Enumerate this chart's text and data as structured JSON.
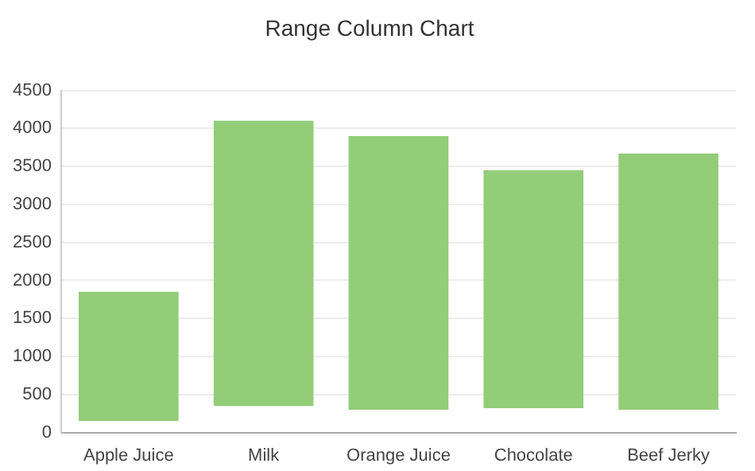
{
  "chart_data": {
    "type": "bar",
    "title": "Range Column Chart",
    "categories": [
      "Apple Juice",
      "Milk",
      "Orange Juice",
      "Chocolate",
      "Beef Jerky"
    ],
    "base": [
      150,
      350,
      300,
      320,
      300
    ],
    "values": [
      1700,
      3750,
      3600,
      3130,
      3370
    ],
    "color": "#93cd78",
    "ylim": [
      0,
      4500
    ],
    "yticks": [
      0,
      500,
      1000,
      1500,
      2000,
      2500,
      3000,
      3500,
      4000,
      4500
    ],
    "grid": "y"
  }
}
